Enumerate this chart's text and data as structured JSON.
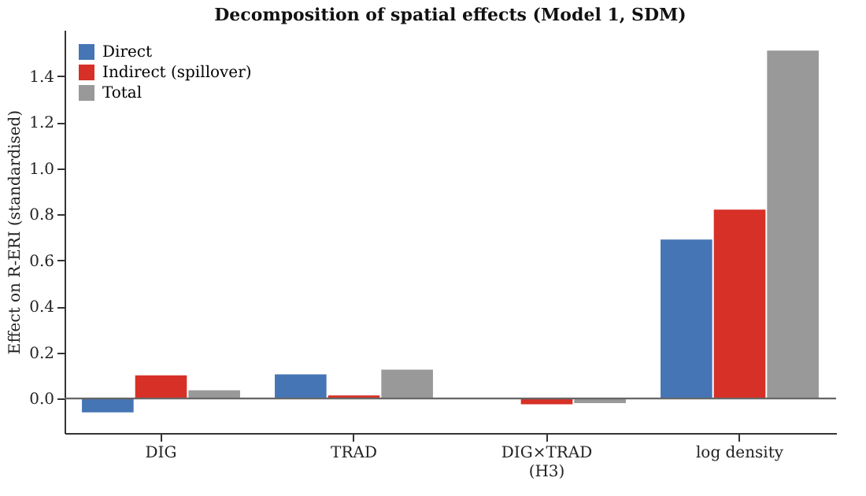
{
  "chart_data": {
    "type": "bar",
    "title": "Decomposition of spatial effects (Model 1, SDM)",
    "ylabel": "Effect on R-ERI (standardised)",
    "categories": [
      "DIG",
      "TRAD",
      "DIG×TRAD\n(H3)",
      "log density"
    ],
    "series": [
      {
        "name": "Direct",
        "color": "#4575b4",
        "values": [
          -0.06,
          0.105,
          0.0,
          0.69
        ]
      },
      {
        "name": "Indirect (spillover)",
        "color": "#d73027",
        "values": [
          0.1,
          0.013,
          -0.025,
          0.82
        ]
      },
      {
        "name": "Total",
        "color": "#999999",
        "values": [
          0.035,
          0.125,
          -0.02,
          1.51
        ]
      }
    ],
    "ylim": [
      -0.15,
      1.6
    ],
    "yticks": [
      {
        "value": 0,
        "label": "0.0"
      },
      0.2,
      0.4,
      0.6,
      0.8,
      {
        "value": 1,
        "label": "1.0"
      },
      1.2,
      1.4
    ],
    "ref_lines": [
      {
        "axis": "y",
        "value": 0,
        "color": "#666666"
      }
    ],
    "legend": "top left",
    "grid": false
  }
}
